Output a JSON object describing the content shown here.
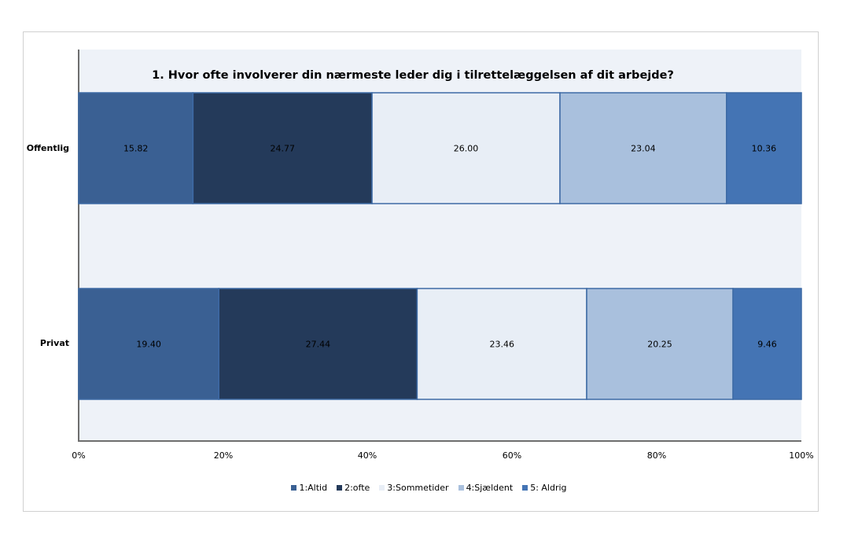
{
  "chart_data": {
    "type": "bar",
    "orientation": "horizontal",
    "stacked": "percent",
    "title": "1. Hvor ofte involverer din nærmeste leder dig i tilrettelæggelsen af dit arbejde?",
    "categories": [
      "Offentlig",
      "Privat"
    ],
    "series": [
      {
        "name": "1:Altid",
        "values": [
          15.82,
          19.4
        ],
        "color": "#3a6093"
      },
      {
        "name": "2:ofte",
        "values": [
          24.77,
          27.44
        ],
        "color": "#243a5a"
      },
      {
        "name": "3:Sommetider",
        "values": [
          26.0,
          23.46
        ],
        "color": "#e8eef6"
      },
      {
        "name": "4:Sjældent",
        "values": [
          23.04,
          20.25
        ],
        "color": "#a9c0dd"
      },
      {
        "name": "5: Aldrig",
        "values": [
          10.36,
          9.46
        ],
        "color": "#4474b4"
      }
    ],
    "value_labels": [
      [
        "15.82",
        "24.77",
        "26.00",
        "23.04",
        "10.36"
      ],
      [
        "19.40",
        "27.44",
        "23.46",
        "20.25",
        "9.46"
      ]
    ],
    "x_ticks": [
      "0%",
      "20%",
      "40%",
      "60%",
      "80%",
      "100%"
    ],
    "xlim": [
      0,
      100
    ],
    "legend_position": "bottom",
    "grid": false
  }
}
